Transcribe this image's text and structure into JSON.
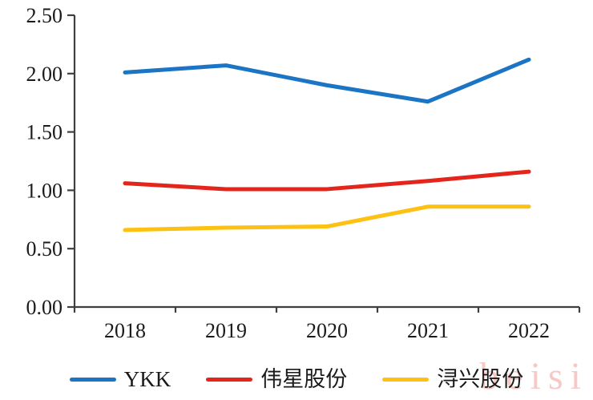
{
  "chart_data": {
    "type": "line",
    "categories": [
      "2018",
      "2019",
      "2020",
      "2021",
      "2022"
    ],
    "series": [
      {
        "name": "YKK",
        "color": "#1b74c4",
        "values": [
          2.01,
          2.07,
          1.9,
          1.76,
          2.12
        ]
      },
      {
        "name": "伟星股份",
        "color": "#e3251b",
        "values": [
          1.06,
          1.01,
          1.01,
          1.08,
          1.16
        ]
      },
      {
        "name": "浔兴股份",
        "color": "#fdc113",
        "values": [
          0.66,
          0.68,
          0.69,
          0.86,
          0.86
        ]
      }
    ],
    "title": "",
    "xlabel": "",
    "ylabel": "",
    "ylim": [
      0,
      2.5
    ],
    "ytick_step": 0.5,
    "ytick_labels": [
      "0.00",
      "0.50",
      "1.00",
      "1.50",
      "2.00",
      "2.50"
    ],
    "grid": false,
    "legend_position": "bottom",
    "axis_color": "#3f3f3f",
    "label_color": "#1a1a1a"
  },
  "watermark": {
    "text": "beisi",
    "color": "#ef9d9a"
  }
}
